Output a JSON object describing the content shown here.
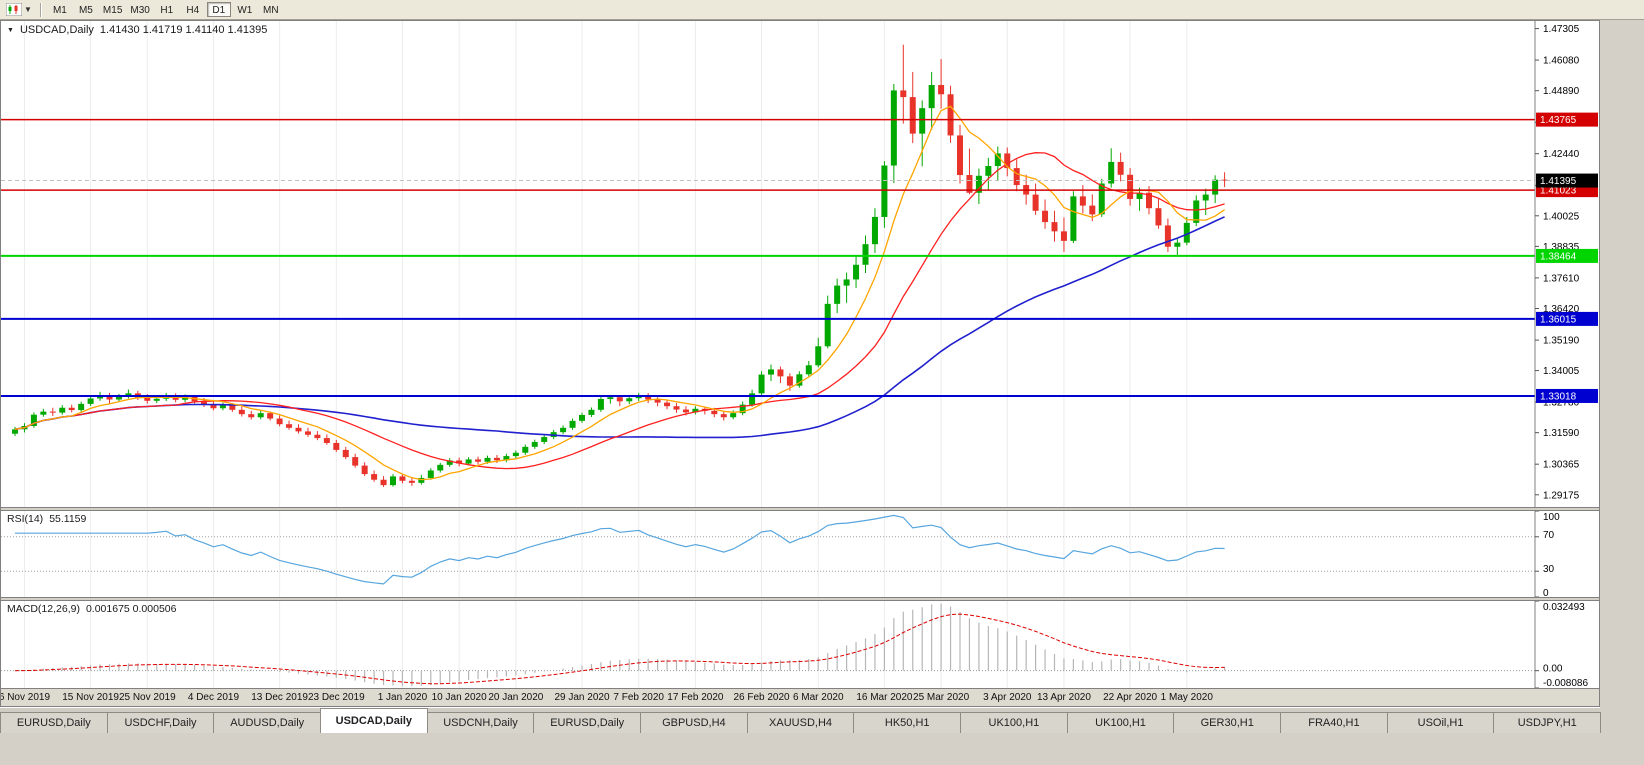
{
  "toolbar": {
    "timeframes": [
      "M1",
      "M5",
      "M15",
      "M30",
      "H1",
      "H4",
      "D1",
      "W1",
      "MN"
    ],
    "active_timeframe": "D1"
  },
  "chart": {
    "symbol_period": "USDCAD,Daily",
    "ohlc_text": "1.41430 1.41719 1.41140 1.41395"
  },
  "chart_data": {
    "type": "candlestick",
    "symbol": "USDCAD",
    "period": "Daily",
    "y_range": [
      1.287,
      1.476
    ],
    "y_ticks": [
      "1.47305",
      "1.46080",
      "1.44890",
      "1.43660",
      "1.42440",
      "1.41210",
      "1.40025",
      "1.38835",
      "1.37610",
      "1.36420",
      "1.35190",
      "1.34005",
      "1.32780",
      "1.31590",
      "1.30365",
      "1.29175"
    ],
    "x_labels": [
      {
        "t": "6 Nov 2019",
        "i": 1
      },
      {
        "t": "15 Nov 2019",
        "i": 8
      },
      {
        "t": "25 Nov 2019",
        "i": 14
      },
      {
        "t": "4 Dec 2019",
        "i": 21
      },
      {
        "t": "13 Dec 2019",
        "i": 28
      },
      {
        "t": "23 Dec 2019",
        "i": 34
      },
      {
        "t": "1 Jan 2020",
        "i": 41
      },
      {
        "t": "10 Jan 2020",
        "i": 47
      },
      {
        "t": "20 Jan 2020",
        "i": 53
      },
      {
        "t": "29 Jan 2020",
        "i": 60
      },
      {
        "t": "7 Feb 2020",
        "i": 66
      },
      {
        "t": "17 Feb 2020",
        "i": 72
      },
      {
        "t": "26 Feb 2020",
        "i": 79
      },
      {
        "t": "6 Mar 2020",
        "i": 85
      },
      {
        "t": "16 Mar 2020",
        "i": 92
      },
      {
        "t": "25 Mar 2020",
        "i": 98
      },
      {
        "t": "3 Apr 2020",
        "i": 105
      },
      {
        "t": "13 Apr 2020",
        "i": 111
      },
      {
        "t": "22 Apr 2020",
        "i": 118
      },
      {
        "t": "1 May 2020",
        "i": 124
      }
    ],
    "ohlc": [
      [
        1.3155,
        1.3182,
        1.3146,
        1.3172
      ],
      [
        1.3172,
        1.3196,
        1.316,
        1.3185
      ],
      [
        1.3185,
        1.3238,
        1.3178,
        1.3229
      ],
      [
        1.3229,
        1.3252,
        1.3221,
        1.3241
      ],
      [
        1.3241,
        1.3256,
        1.3224,
        1.3237
      ],
      [
        1.3237,
        1.3266,
        1.3229,
        1.3256
      ],
      [
        1.3256,
        1.3268,
        1.3238,
        1.3247
      ],
      [
        1.3247,
        1.328,
        1.324,
        1.3271
      ],
      [
        1.3271,
        1.3302,
        1.3263,
        1.3292
      ],
      [
        1.3292,
        1.3318,
        1.3283,
        1.3305
      ],
      [
        1.3305,
        1.3314,
        1.3272,
        1.3288
      ],
      [
        1.3288,
        1.331,
        1.3278,
        1.3301
      ],
      [
        1.3301,
        1.3327,
        1.3292,
        1.3312
      ],
      [
        1.3312,
        1.3322,
        1.3286,
        1.3296
      ],
      [
        1.3296,
        1.3309,
        1.3272,
        1.3283
      ],
      [
        1.3283,
        1.3302,
        1.3274,
        1.3291
      ],
      [
        1.3291,
        1.3314,
        1.3282,
        1.3303
      ],
      [
        1.3303,
        1.3312,
        1.3277,
        1.3287
      ],
      [
        1.3287,
        1.3308,
        1.3278,
        1.3298
      ],
      [
        1.3298,
        1.3306,
        1.3272,
        1.3281
      ],
      [
        1.3281,
        1.3294,
        1.3259,
        1.3269
      ],
      [
        1.3269,
        1.3284,
        1.3246,
        1.3254
      ],
      [
        1.3254,
        1.3276,
        1.3246,
        1.3266
      ],
      [
        1.3266,
        1.3274,
        1.324,
        1.3248
      ],
      [
        1.3248,
        1.3262,
        1.3222,
        1.3231
      ],
      [
        1.3231,
        1.3244,
        1.321,
        1.3219
      ],
      [
        1.3219,
        1.3246,
        1.3211,
        1.3235
      ],
      [
        1.3235,
        1.3242,
        1.3206,
        1.3214
      ],
      [
        1.3214,
        1.3226,
        1.3184,
        1.3192
      ],
      [
        1.3192,
        1.3206,
        1.317,
        1.3178
      ],
      [
        1.3178,
        1.3192,
        1.3156,
        1.3164
      ],
      [
        1.3164,
        1.3178,
        1.3143,
        1.3151
      ],
      [
        1.3151,
        1.3165,
        1.313,
        1.3138
      ],
      [
        1.3138,
        1.3152,
        1.3112,
        1.3119
      ],
      [
        1.3119,
        1.3131,
        1.3084,
        1.3092
      ],
      [
        1.3092,
        1.3104,
        1.3056,
        1.3064
      ],
      [
        1.3064,
        1.3077,
        1.3023,
        1.3031
      ],
      [
        1.3031,
        1.3044,
        1.299,
        1.2998
      ],
      [
        1.2998,
        1.3012,
        1.2968,
        1.2976
      ],
      [
        1.2976,
        1.299,
        1.2948,
        1.2955
      ],
      [
        1.2955,
        1.2998,
        1.2949,
        1.2989
      ],
      [
        1.2989,
        1.2999,
        1.2962,
        1.2972
      ],
      [
        1.2972,
        1.2986,
        1.2952,
        1.2964
      ],
      [
        1.2964,
        1.2995,
        1.2957,
        1.2983
      ],
      [
        1.2983,
        1.3021,
        1.2976,
        1.3012
      ],
      [
        1.3012,
        1.3042,
        1.3004,
        1.3034
      ],
      [
        1.3034,
        1.306,
        1.3026,
        1.3051
      ],
      [
        1.3051,
        1.3062,
        1.3028,
        1.3039
      ],
      [
        1.3039,
        1.3064,
        1.3031,
        1.3055
      ],
      [
        1.3055,
        1.3066,
        1.3035,
        1.3046
      ],
      [
        1.3046,
        1.307,
        1.3038,
        1.3061
      ],
      [
        1.3061,
        1.3072,
        1.3041,
        1.3052
      ],
      [
        1.3052,
        1.3077,
        1.3044,
        1.3068
      ],
      [
        1.3068,
        1.309,
        1.306,
        1.3081
      ],
      [
        1.3081,
        1.3113,
        1.3073,
        1.3104
      ],
      [
        1.3104,
        1.3132,
        1.3096,
        1.3123
      ],
      [
        1.3123,
        1.3151,
        1.3115,
        1.3142
      ],
      [
        1.3142,
        1.317,
        1.3134,
        1.3161
      ],
      [
        1.3161,
        1.3187,
        1.3153,
        1.3178
      ],
      [
        1.3178,
        1.3214,
        1.317,
        1.3205
      ],
      [
        1.3205,
        1.3237,
        1.3197,
        1.3228
      ],
      [
        1.3228,
        1.3257,
        1.322,
        1.3248
      ],
      [
        1.3248,
        1.3299,
        1.324,
        1.329
      ],
      [
        1.329,
        1.3306,
        1.3272,
        1.3297
      ],
      [
        1.3297,
        1.3305,
        1.3262,
        1.3281
      ],
      [
        1.3281,
        1.3302,
        1.327,
        1.3293
      ],
      [
        1.3293,
        1.3314,
        1.3282,
        1.3305
      ],
      [
        1.3305,
        1.3313,
        1.3274,
        1.3288
      ],
      [
        1.3288,
        1.3297,
        1.3262,
        1.3276
      ],
      [
        1.3276,
        1.3288,
        1.325,
        1.3262
      ],
      [
        1.3262,
        1.3274,
        1.3236,
        1.3249
      ],
      [
        1.3249,
        1.3262,
        1.3226,
        1.3238
      ],
      [
        1.3238,
        1.3262,
        1.323,
        1.3252
      ],
      [
        1.3252,
        1.3261,
        1.323,
        1.3244
      ],
      [
        1.3244,
        1.3256,
        1.3219,
        1.3231
      ],
      [
        1.3231,
        1.3244,
        1.3206,
        1.3219
      ],
      [
        1.3219,
        1.3246,
        1.3211,
        1.3235
      ],
      [
        1.3235,
        1.328,
        1.3227,
        1.3268
      ],
      [
        1.3268,
        1.3326,
        1.326,
        1.3312
      ],
      [
        1.3312,
        1.3398,
        1.3304,
        1.3385
      ],
      [
        1.3385,
        1.3424,
        1.336,
        1.3405
      ],
      [
        1.3405,
        1.3416,
        1.3352,
        1.3378
      ],
      [
        1.3378,
        1.339,
        1.3322,
        1.3342
      ],
      [
        1.3342,
        1.3398,
        1.3334,
        1.3386
      ],
      [
        1.3386,
        1.3438,
        1.3378,
        1.3421
      ],
      [
        1.3421,
        1.3528,
        1.3413,
        1.3495
      ],
      [
        1.3495,
        1.3692,
        1.3487,
        1.366
      ],
      [
        1.366,
        1.3758,
        1.3624,
        1.3731
      ],
      [
        1.3731,
        1.3782,
        1.3664,
        1.3755
      ],
      [
        1.3755,
        1.3846,
        1.3722,
        1.3812
      ],
      [
        1.3812,
        1.3926,
        1.378,
        1.3892
      ],
      [
        1.3892,
        1.4032,
        1.3858,
        1.3998
      ],
      [
        1.3998,
        1.4215,
        1.3956,
        1.4198
      ],
      [
        1.4198,
        1.4515,
        1.413,
        1.449
      ],
      [
        1.449,
        1.4668,
        1.4361,
        1.4464
      ],
      [
        1.4464,
        1.4562,
        1.4285,
        1.4322
      ],
      [
        1.4322,
        1.4451,
        1.4195,
        1.4421
      ],
      [
        1.4421,
        1.4562,
        1.4336,
        1.4511
      ],
      [
        1.4511,
        1.4612,
        1.4419,
        1.4475
      ],
      [
        1.4475,
        1.4508,
        1.4286,
        1.4315
      ],
      [
        1.4315,
        1.4356,
        1.4128,
        1.4161
      ],
      [
        1.4161,
        1.4264,
        1.4086,
        1.4092
      ],
      [
        1.4092,
        1.4186,
        1.4048,
        1.4158
      ],
      [
        1.4158,
        1.4228,
        1.4102,
        1.4196
      ],
      [
        1.4196,
        1.4272,
        1.4138,
        1.4245
      ],
      [
        1.4245,
        1.4268,
        1.4156,
        1.4188
      ],
      [
        1.4188,
        1.4222,
        1.4098,
        1.4122
      ],
      [
        1.4122,
        1.4162,
        1.4046,
        1.4085
      ],
      [
        1.4085,
        1.4128,
        1.4006,
        1.4022
      ],
      [
        1.4022,
        1.4066,
        1.3952,
        1.3978
      ],
      [
        1.3978,
        1.4022,
        1.3902,
        1.3942
      ],
      [
        1.3942,
        1.3996,
        1.3862,
        1.3905
      ],
      [
        1.3905,
        1.4098,
        1.3896,
        1.4078
      ],
      [
        1.4078,
        1.4122,
        1.4012,
        1.4042
      ],
      [
        1.4042,
        1.4086,
        1.3982,
        1.4008
      ],
      [
        1.4008,
        1.4146,
        1.3998,
        1.4128
      ],
      [
        1.4128,
        1.4265,
        1.4112,
        1.4212
      ],
      [
        1.4212,
        1.4248,
        1.4136,
        1.4162
      ],
      [
        1.4162,
        1.4188,
        1.4042,
        1.4068
      ],
      [
        1.4068,
        1.4112,
        1.4022,
        1.4092
      ],
      [
        1.4092,
        1.4118,
        1.4008,
        1.4032
      ],
      [
        1.4032,
        1.4068,
        1.3952,
        1.3965
      ],
      [
        1.3965,
        1.3992,
        1.3862,
        1.3882
      ],
      [
        1.3882,
        1.3918,
        1.3845,
        1.3898
      ],
      [
        1.3898,
        1.3998,
        1.3888,
        1.3975
      ],
      [
        1.3975,
        1.4082,
        1.3962,
        1.4062
      ],
      [
        1.4062,
        1.4108,
        1.4006,
        1.4085
      ],
      [
        1.4085,
        1.416,
        1.4052,
        1.4143
      ],
      [
        1.4143,
        1.41719,
        1.4114,
        1.41395
      ]
    ],
    "h_lines": [
      {
        "price": 1.43765,
        "label": "1.43765",
        "color": "#D40000",
        "width": 1.5
      },
      {
        "price": 1.41023,
        "label": "1.41023",
        "color": "#D40000",
        "width": 1.5
      },
      {
        "price": 1.38464,
        "label": "1.38464",
        "color": "#00D500",
        "width": 2
      },
      {
        "price": 1.36015,
        "label": "1.36015",
        "color": "#0000D0",
        "width": 2
      },
      {
        "price": 1.33018,
        "label": "1.33018",
        "color": "#0000D0",
        "width": 2
      }
    ],
    "bid": {
      "price": 1.41395,
      "label": "1.41395",
      "label_bg": "#000000",
      "line_color": "#C0C0C0"
    },
    "ma": [
      {
        "period": 7,
        "color": "#FFA500",
        "width": 1.3,
        "name": "ma-fast-orange"
      },
      {
        "period": 18,
        "color": "#FF2020",
        "width": 1.3,
        "name": "ma-mid-red"
      },
      {
        "period": 50,
        "color": "#2020CF",
        "width": 1.6,
        "name": "ma-slow-blue"
      }
    ],
    "colors": {
      "up": "#00A800",
      "down": "#E8332A",
      "grid": "#ECECEC",
      "axis_line": "#808080",
      "axis_text": "#000000"
    },
    "rsi": {
      "name": "RSI(14)",
      "period": 14,
      "value": "55.1159",
      "color": "#57A6DE",
      "levels": [
        70,
        30
      ],
      "ticks": [
        "100",
        "70",
        "30",
        "0"
      ],
      "range": [
        0,
        100
      ]
    },
    "macd": {
      "name": "MACD(12,26,9)",
      "fast": 12,
      "slow": 26,
      "signal": 9,
      "values": "0.001675 0.000506",
      "range": [
        -0.008086,
        0.032493
      ],
      "ticks": [
        {
          "v": 0.032493,
          "t": "0.032493"
        },
        {
          "v": 0,
          "t": "0.00"
        },
        {
          "v": -0.008086,
          "t": "-0.008086"
        }
      ],
      "hist_color": "#B6B6B6",
      "signal_color": "#DE0000"
    }
  },
  "tabs": {
    "items": [
      "EURUSD,Daily",
      "USDCHF,Daily",
      "AUDUSD,Daily",
      "USDCAD,Daily",
      "USDCNH,Daily",
      "EURUSD,Daily",
      "GBPUSD,H4",
      "XAUUSD,H4",
      "HK50,H1",
      "UK100,H1",
      "UK100,H1",
      "GER30,H1",
      "FRA40,H1",
      "USOil,H1",
      "USDJPY,H1"
    ],
    "active_index": 3
  }
}
